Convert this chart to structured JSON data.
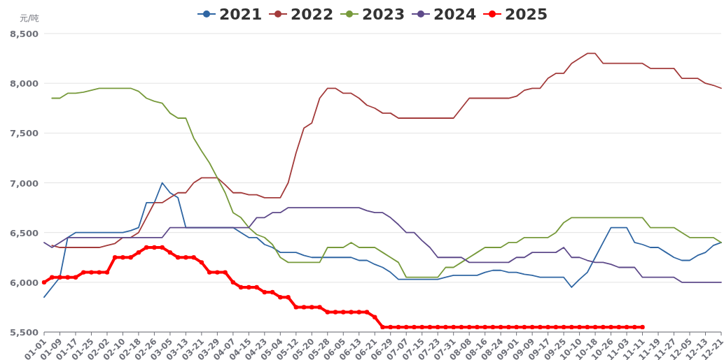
{
  "chart_data": {
    "type": "line",
    "ylabel": "元/吨",
    "ylim": [
      5500,
      8500
    ],
    "yticks": [
      {
        "value": 5500,
        "label": "5,500"
      },
      {
        "value": 6000,
        "label": "6,000"
      },
      {
        "value": 6500,
        "label": "6,500"
      },
      {
        "value": 7000,
        "label": "7,000"
      },
      {
        "value": 7500,
        "label": "7,500"
      },
      {
        "value": 8000,
        "label": "8,000"
      },
      {
        "value": 8500,
        "label": "8,500"
      }
    ],
    "grid": "y",
    "legend": "top",
    "categories": [
      "01-01",
      null,
      "01-09",
      null,
      "01-17",
      null,
      "01-25",
      null,
      "02-02",
      null,
      "02-10",
      null,
      "02-18",
      null,
      "02-26",
      null,
      "03-05",
      null,
      "03-13",
      null,
      "03-21",
      null,
      "03-29",
      null,
      "04-07",
      null,
      "04-15",
      null,
      "04-23",
      null,
      "05-04",
      null,
      "05-12",
      null,
      "05-20",
      null,
      "05-28",
      null,
      "06-05",
      null,
      "06-13",
      null,
      "06-21",
      null,
      "06-29",
      null,
      "07-07",
      null,
      "07-15",
      null,
      "07-23",
      null,
      "07-31",
      null,
      "08-08",
      null,
      "08-16",
      null,
      "08-24",
      null,
      "09-01",
      null,
      "09-09",
      null,
      "09-17",
      null,
      "09-25",
      null,
      "10-10",
      null,
      "10-18",
      null,
      "10-26",
      null,
      "11-03",
      null,
      "11-11",
      null,
      "11-19",
      null,
      "11-27",
      null,
      "12-05",
      null,
      "12-13",
      null,
      "12-21"
    ],
    "series": [
      {
        "name": "2021",
        "color": "#2f66a3",
        "marker": "none",
        "values": [
          5850,
          5950,
          6050,
          6450,
          6500,
          6500,
          6500,
          6500,
          6500,
          6500,
          6500,
          6520,
          6550,
          6800,
          6800,
          7000,
          6900,
          6850,
          6550,
          6550,
          6550,
          6550,
          6550,
          6550,
          6550,
          6500,
          6450,
          6450,
          6380,
          6350,
          6300,
          6300,
          6300,
          6270,
          6250,
          6250,
          6250,
          6250,
          6250,
          6250,
          6220,
          6220,
          6180,
          6150,
          6100,
          6030,
          6030,
          6030,
          6030,
          6030,
          6030,
          6050,
          6070,
          6070,
          6070,
          6070,
          6100,
          6120,
          6120,
          6100,
          6100,
          6080,
          6070,
          6050,
          6050,
          6050,
          6050,
          5950,
          6030,
          6100,
          6250,
          6400,
          6550,
          6550,
          6550,
          6400,
          6380,
          6350,
          6350,
          6300,
          6250,
          6220,
          6220,
          6270,
          6300,
          6370,
          6400
        ]
      },
      {
        "name": "2022",
        "color": "#a33b3b",
        "marker": "none",
        "values": [
          null,
          6370,
          6350,
          6350,
          6350,
          6350,
          6350,
          6350,
          6370,
          6390,
          6450,
          6450,
          6500,
          6650,
          6800,
          6800,
          6850,
          6900,
          6900,
          7000,
          7050,
          7050,
          7050,
          6980,
          6900,
          6900,
          6880,
          6880,
          6850,
          6850,
          6850,
          7000,
          7300,
          7550,
          7600,
          7850,
          7950,
          7950,
          7900,
          7900,
          7850,
          7780,
          7750,
          7700,
          7700,
          7650,
          7650,
          7650,
          7650,
          7650,
          7650,
          7650,
          7650,
          7750,
          7850,
          7850,
          7850,
          7850,
          7850,
          7850,
          7870,
          7930,
          7950,
          7950,
          8050,
          8100,
          8100,
          8200,
          8250,
          8300,
          8300,
          8200,
          8200,
          8200,
          8200,
          8200,
          8200,
          8150,
          8150,
          8150,
          8150,
          8050,
          8050,
          8050,
          8000,
          7980,
          7950
        ]
      },
      {
        "name": "2023",
        "color": "#779a3b",
        "marker": "none",
        "values": [
          null,
          7850,
          7850,
          7900,
          7900,
          7910,
          7930,
          7950,
          7950,
          7950,
          7950,
          7950,
          7920,
          7850,
          7820,
          7800,
          7700,
          7650,
          7650,
          7450,
          7320,
          7200,
          7050,
          6900,
          6700,
          6650,
          6550,
          6480,
          6450,
          6380,
          6250,
          6200,
          6200,
          6200,
          6200,
          6200,
          6350,
          6350,
          6350,
          6400,
          6350,
          6350,
          6350,
          6300,
          6250,
          6200,
          6050,
          6050,
          6050,
          6050,
          6050,
          6150,
          6150,
          6200,
          6250,
          6300,
          6350,
          6350,
          6350,
          6400,
          6400,
          6450,
          6450,
          6450,
          6450,
          6500,
          6600,
          6650,
          6650,
          6650,
          6650,
          6650,
          6650,
          6650,
          6650,
          6650,
          6650,
          6550,
          6550,
          6550,
          6550,
          6500,
          6450,
          6450,
          6450,
          6450,
          6400
        ]
      },
      {
        "name": "2024",
        "color": "#5e4a8a",
        "marker": "none",
        "values": [
          6400,
          6350,
          6400,
          6450,
          6450,
          6450,
          6450,
          6450,
          6450,
          6450,
          6450,
          6450,
          6450,
          6450,
          6450,
          6450,
          6550,
          6550,
          6550,
          6550,
          6550,
          6550,
          6550,
          6550,
          6550,
          6550,
          6550,
          6650,
          6650,
          6700,
          6700,
          6750,
          6750,
          6750,
          6750,
          6750,
          6750,
          6750,
          6750,
          6750,
          6750,
          6720,
          6700,
          6700,
          6650,
          6580,
          6500,
          6500,
          6420,
          6350,
          6250,
          6250,
          6250,
          6250,
          6200,
          6200,
          6200,
          6200,
          6200,
          6200,
          6250,
          6250,
          6300,
          6300,
          6300,
          6300,
          6350,
          6250,
          6250,
          6220,
          6200,
          6200,
          6180,
          6150,
          6150,
          6150,
          6050,
          6050,
          6050,
          6050,
          6050,
          6000,
          6000,
          6000,
          6000,
          6000,
          6000
        ]
      },
      {
        "name": "2025",
        "color": "#ff0000",
        "marker": "circle",
        "values": [
          6000,
          6050,
          6050,
          6050,
          6050,
          6100,
          6100,
          6100,
          6100,
          6250,
          6250,
          6250,
          6300,
          6350,
          6350,
          6350,
          6300,
          6250,
          6250,
          6250,
          6200,
          6100,
          6100,
          6100,
          6000,
          5950,
          5950,
          5950,
          5900,
          5900,
          5850,
          5850,
          5750,
          5750,
          5750,
          5750,
          5700,
          5700,
          5700,
          5700,
          5700,
          5700,
          5650,
          5550,
          5550,
          5550,
          5550,
          5550,
          5550,
          5550,
          5550,
          5550,
          5550,
          5550,
          5550,
          5550,
          5550,
          5550,
          5550,
          5550,
          5550,
          5550,
          5550,
          5550,
          5550,
          5550,
          5550,
          5550,
          5550,
          5550,
          5550,
          5550,
          5550,
          5550,
          5550,
          5550,
          5550,
          null,
          null,
          null,
          null,
          null,
          null,
          null,
          null,
          null,
          null
        ]
      }
    ]
  }
}
